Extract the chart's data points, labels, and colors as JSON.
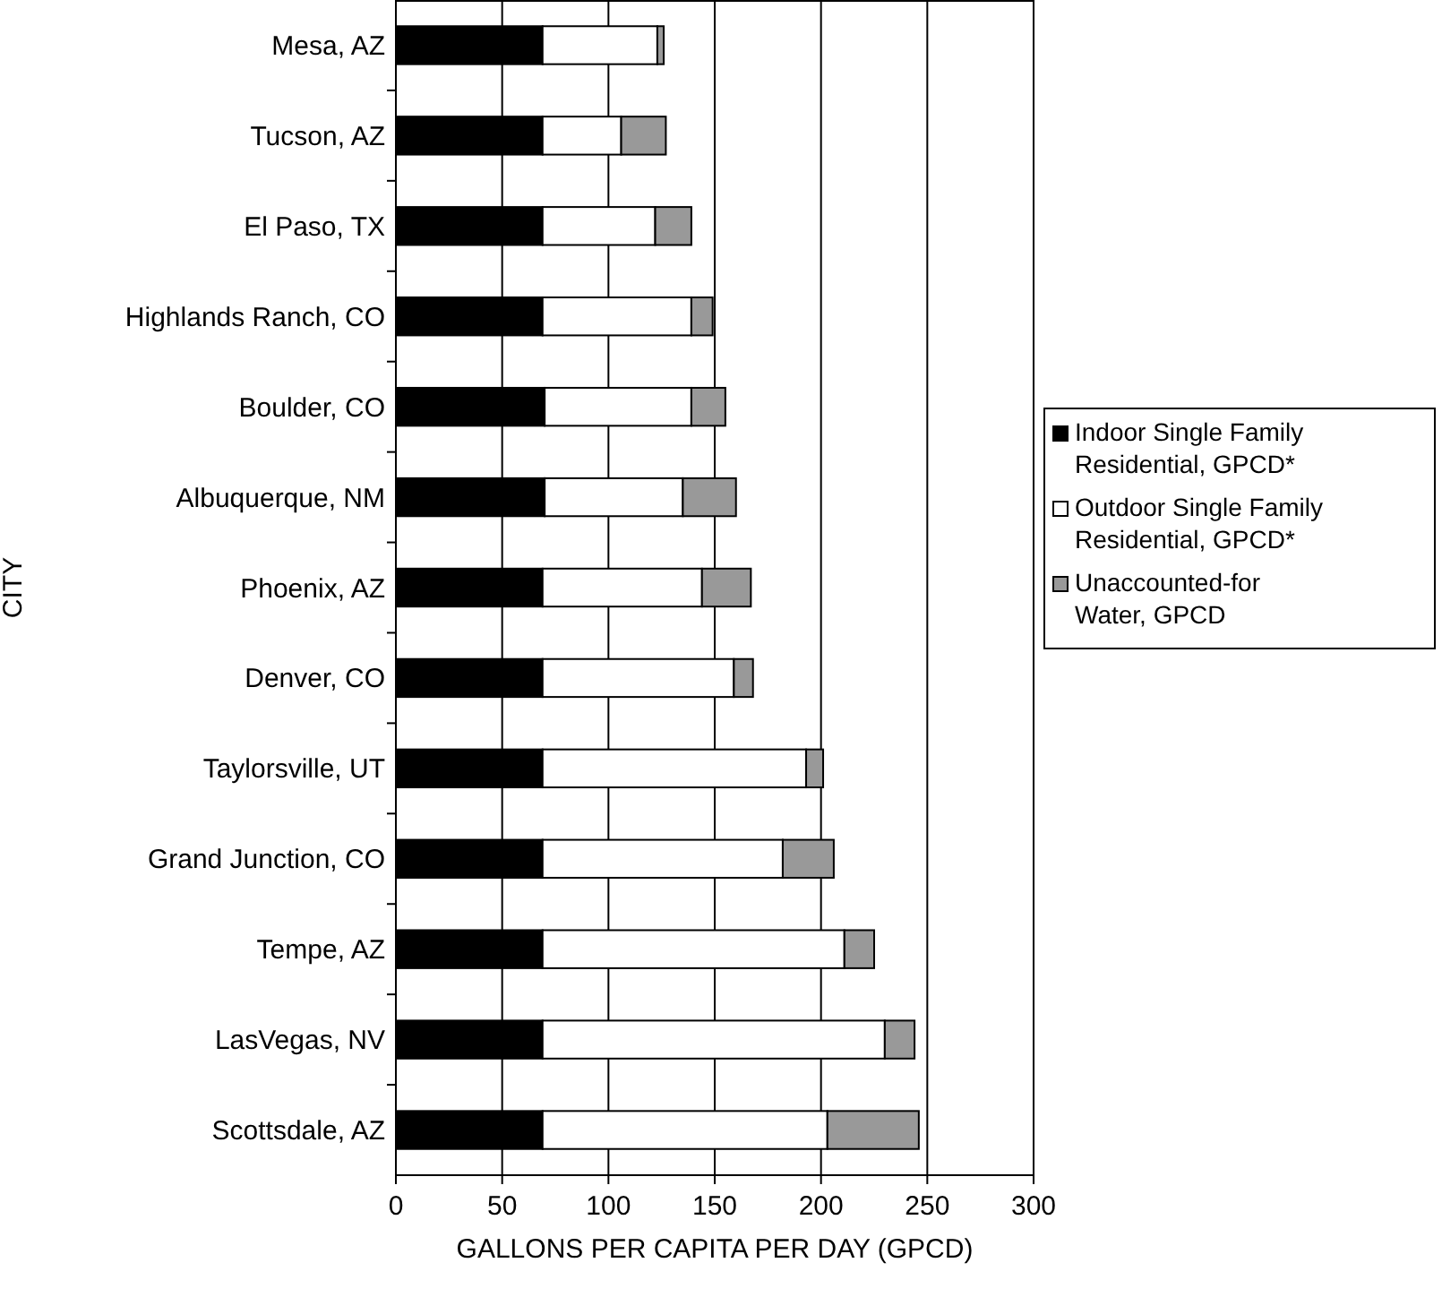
{
  "chart_data": {
    "type": "bar",
    "orientation": "horizontal",
    "stacked": true,
    "xlabel": "GALLONS PER CAPITA PER DAY (GPCD)",
    "ylabel": "CITY",
    "categories": [
      "Mesa, AZ",
      "Tucson, AZ",
      "El Paso, TX",
      "Highlands Ranch, CO",
      "Boulder, CO",
      "Albuquerque,  NM",
      "Phoenix, AZ",
      "Denver, CO",
      "Taylorsville, UT",
      "Grand Junction, CO",
      "Tempe, AZ",
      "LasVegas, NV",
      "Scottsdale, AZ"
    ],
    "series": [
      {
        "name": "Indoor Single Family Residential, GPCD*",
        "color": "#000000",
        "values": [
          69,
          69,
          69,
          69,
          70,
          70,
          69,
          69,
          69,
          69,
          69,
          69,
          69
        ]
      },
      {
        "name": "Outdoor Single Family Residential, GPCD*",
        "color": "#ffffff",
        "values": [
          54,
          37,
          53,
          70,
          69,
          65,
          75,
          90,
          124,
          113,
          142,
          161,
          134
        ]
      },
      {
        "name": "Unaccounted-for Water, GPCD",
        "color": "#999999",
        "values": [
          3,
          21,
          17,
          10,
          16,
          25,
          23,
          9,
          8,
          24,
          14,
          14,
          43
        ]
      }
    ],
    "xlim": [
      0,
      300
    ],
    "xticks": [
      0,
      50,
      100,
      150,
      200,
      250,
      300
    ],
    "grid": "x",
    "legend": "right"
  }
}
